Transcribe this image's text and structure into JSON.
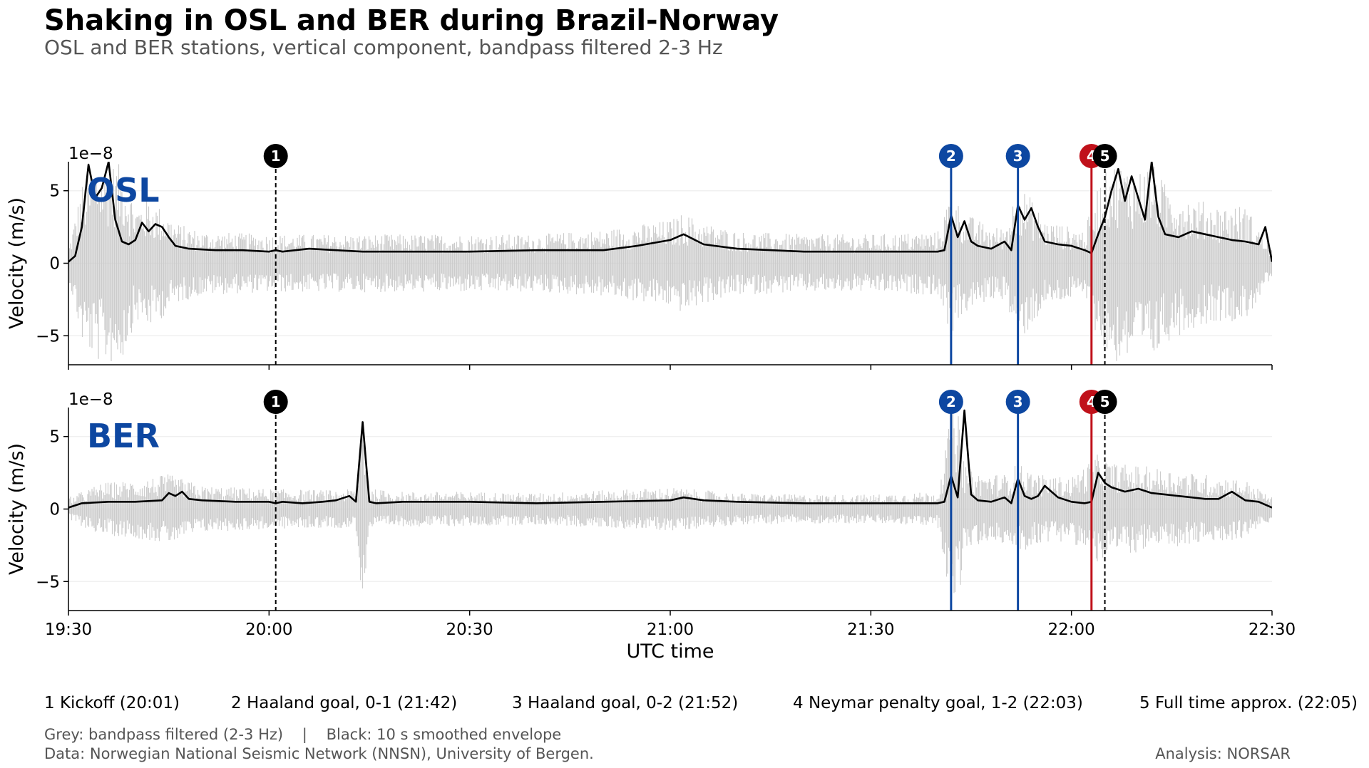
{
  "title": "Shaking in OSL and BER during Brazil-Norway",
  "subtitle": "OSL and BER stations, vertical component, bandpass filtered 2-3 Hz",
  "chart_data": {
    "type": "line",
    "x_unit": "UTC time",
    "xlabel": "UTC time",
    "xlim": [
      "19:30",
      "22:30"
    ],
    "x_ticks": [
      "19:30",
      "20:00",
      "20:30",
      "21:00",
      "21:30",
      "22:00",
      "22:30"
    ],
    "ylabel": "Velocity (m/s)",
    "y_scale_label": "1e−8",
    "ylim": [
      -7,
      7
    ],
    "y_ticks": [
      -5,
      0,
      5
    ],
    "grid": true,
    "grid_axis": "y",
    "colors": {
      "filtered": "#cccccc",
      "envelope": "#000000",
      "norway": "#0d47a1",
      "brazil": "#c0111a",
      "neutral": "#000000",
      "station_label": "#0d47a1"
    },
    "events": [
      {
        "number": "1",
        "time": "20:01",
        "color": "#000000",
        "style": "dashed"
      },
      {
        "number": "2",
        "time": "21:42",
        "color": "#0d47a1",
        "style": "solid"
      },
      {
        "number": "3",
        "time": "21:52",
        "color": "#0d47a1",
        "style": "solid"
      },
      {
        "number": "4",
        "time": "22:03",
        "color": "#c0111a",
        "style": "solid"
      },
      {
        "number": "5",
        "time": "22:05",
        "color": "#000000",
        "style": "dashed"
      }
    ],
    "panels": [
      {
        "station": "OSL",
        "envelope_x": [
          "19:30",
          "19:31",
          "19:32",
          "19:33",
          "19:34",
          "19:35",
          "19:36",
          "19:37",
          "19:38",
          "19:39",
          "19:40",
          "19:41",
          "19:42",
          "19:43",
          "19:44",
          "19:45",
          "19:46",
          "19:48",
          "19:52",
          "19:56",
          "20:00",
          "20:01",
          "20:02",
          "20:06",
          "20:10",
          "20:14",
          "20:20",
          "20:30",
          "20:40",
          "20:50",
          "20:55",
          "21:00",
          "21:02",
          "21:05",
          "21:10",
          "21:20",
          "21:30",
          "21:40",
          "21:41",
          "21:42",
          "21:43",
          "21:44",
          "21:45",
          "21:46",
          "21:48",
          "21:50",
          "21:51",
          "21:52",
          "21:53",
          "21:54",
          "21:55",
          "21:56",
          "21:58",
          "22:00",
          "22:02",
          "22:03",
          "22:04",
          "22:05",
          "22:06",
          "22:07",
          "22:08",
          "22:09",
          "22:10",
          "22:11",
          "22:12",
          "22:13",
          "22:14",
          "22:16",
          "22:18",
          "22:20",
          "22:22",
          "22:24",
          "22:26",
          "22:28",
          "22:29",
          "22:30"
        ],
        "envelope_y": [
          0.1,
          0.5,
          2.5,
          6.8,
          4.5,
          5.2,
          7.0,
          3.0,
          1.5,
          1.3,
          1.6,
          2.8,
          2.2,
          2.7,
          2.5,
          1.8,
          1.2,
          1.0,
          0.9,
          0.9,
          0.8,
          0.9,
          0.8,
          1.0,
          0.9,
          0.8,
          0.8,
          0.8,
          0.9,
          0.9,
          1.2,
          1.6,
          2.0,
          1.3,
          1.0,
          0.8,
          0.8,
          0.8,
          0.9,
          3.3,
          1.8,
          2.9,
          1.5,
          1.2,
          1.0,
          1.5,
          0.9,
          4.0,
          3.0,
          3.8,
          2.5,
          1.5,
          1.3,
          1.2,
          0.9,
          0.7,
          2.0,
          3.2,
          5.0,
          6.5,
          4.3,
          6.0,
          4.5,
          3.0,
          7.0,
          3.2,
          2.0,
          1.8,
          2.2,
          2.0,
          1.8,
          1.6,
          1.5,
          1.3,
          2.5,
          0.1
        ],
        "noise_band_x": [
          "19:30",
          "19:32",
          "19:34",
          "19:36",
          "19:38",
          "19:40",
          "19:42",
          "19:44",
          "19:46",
          "19:50",
          "20:00",
          "20:10",
          "20:20",
          "20:30",
          "20:40",
          "20:50",
          "21:00",
          "21:02",
          "21:05",
          "21:10",
          "21:20",
          "21:30",
          "21:40",
          "21:42",
          "21:44",
          "21:46",
          "21:48",
          "21:50",
          "21:52",
          "21:54",
          "21:56",
          "22:00",
          "22:02",
          "22:04",
          "22:06",
          "22:08",
          "22:10",
          "22:12",
          "22:14",
          "22:18",
          "22:22",
          "22:26",
          "22:30"
        ],
        "noise_band_y": [
          1.0,
          5.5,
          6.8,
          7.0,
          6.8,
          4.0,
          4.5,
          3.8,
          2.8,
          2.2,
          2.0,
          2.0,
          2.0,
          2.0,
          2.0,
          2.3,
          3.0,
          3.5,
          2.8,
          2.2,
          2.0,
          2.0,
          2.2,
          5.0,
          3.5,
          3.0,
          2.5,
          2.5,
          5.5,
          4.5,
          3.0,
          2.5,
          2.3,
          5.5,
          7.0,
          6.8,
          6.5,
          7.0,
          5.5,
          4.5,
          4.0,
          4.0,
          1.0
        ]
      },
      {
        "station": "BER",
        "envelope_x": [
          "19:30",
          "19:32",
          "19:36",
          "19:40",
          "19:44",
          "19:45",
          "19:46",
          "19:47",
          "19:48",
          "19:50",
          "19:55",
          "20:00",
          "20:01",
          "20:02",
          "20:05",
          "20:08",
          "20:10",
          "20:12",
          "20:13",
          "20:14",
          "20:15",
          "20:16",
          "20:20",
          "20:30",
          "20:40",
          "20:50",
          "21:00",
          "21:02",
          "21:05",
          "21:10",
          "21:20",
          "21:30",
          "21:40",
          "21:41",
          "21:42",
          "21:43",
          "21:44",
          "21:45",
          "21:46",
          "21:48",
          "21:50",
          "21:51",
          "21:52",
          "21:53",
          "21:54",
          "21:55",
          "21:56",
          "21:58",
          "22:00",
          "22:02",
          "22:03",
          "22:04",
          "22:05",
          "22:06",
          "22:08",
          "22:10",
          "22:12",
          "22:14",
          "22:16",
          "22:18",
          "22:20",
          "22:22",
          "22:24",
          "22:26",
          "22:28",
          "22:30"
        ],
        "envelope_y": [
          0.1,
          0.4,
          0.5,
          0.5,
          0.6,
          1.1,
          0.9,
          1.2,
          0.7,
          0.6,
          0.5,
          0.5,
          0.4,
          0.5,
          0.4,
          0.5,
          0.6,
          0.9,
          0.5,
          6.0,
          0.5,
          0.4,
          0.5,
          0.5,
          0.4,
          0.5,
          0.6,
          0.8,
          0.6,
          0.5,
          0.4,
          0.4,
          0.4,
          0.5,
          2.3,
          0.8,
          6.8,
          1.0,
          0.6,
          0.5,
          0.8,
          0.4,
          2.1,
          0.9,
          0.7,
          0.9,
          1.6,
          0.8,
          0.5,
          0.4,
          0.5,
          2.5,
          1.8,
          1.5,
          1.2,
          1.4,
          1.1,
          1.0,
          0.9,
          0.8,
          0.7,
          0.7,
          1.2,
          0.6,
          0.5,
          0.1
        ],
        "noise_band_x": [
          "19:30",
          "19:35",
          "19:40",
          "19:45",
          "19:50",
          "20:00",
          "20:10",
          "20:13",
          "20:14",
          "20:15",
          "20:20",
          "20:30",
          "20:40",
          "20:50",
          "21:00",
          "21:10",
          "21:20",
          "21:30",
          "21:40",
          "21:42",
          "21:43",
          "21:44",
          "21:46",
          "21:50",
          "21:52",
          "21:54",
          "21:56",
          "22:00",
          "22:04",
          "22:06",
          "22:10",
          "22:14",
          "22:18",
          "22:22",
          "22:26",
          "22:30"
        ],
        "noise_band_y": [
          0.8,
          1.8,
          2.0,
          2.4,
          1.6,
          1.4,
          1.3,
          1.4,
          7.0,
          1.4,
          1.2,
          1.2,
          1.1,
          1.3,
          1.5,
          1.1,
          1.0,
          1.0,
          1.2,
          6.5,
          7.0,
          3.0,
          2.5,
          2.4,
          3.2,
          2.6,
          2.3,
          2.2,
          3.8,
          3.2,
          3.0,
          2.8,
          2.5,
          2.3,
          2.0,
          0.8
        ]
      }
    ]
  },
  "legend": [
    "1  Kickoff (20:01)",
    "2  Haaland goal, 0-1 (21:42)",
    "3  Haaland goal, 0-2 (21:52)",
    "4  Neymar penalty goal, 1-2 (22:03)",
    "5  Full time approx. (22:05)"
  ],
  "notes": {
    "colors": "Grey: bandpass filtered (2-3 Hz)    |    Black: 10 s smoothed envelope",
    "source": "Data: Norwegian National Seismic Network (NNSN), University of Bergen.",
    "analysis": "Analysis: NORSAR"
  }
}
